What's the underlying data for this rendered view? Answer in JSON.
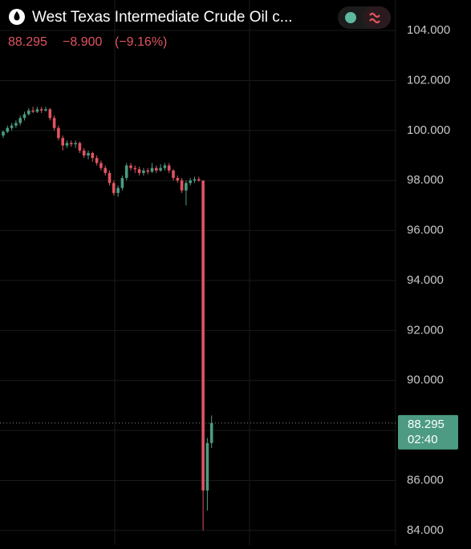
{
  "chart_data": {
    "type": "candlestick",
    "title": "West Texas Intermediate Crude Oil c...",
    "price": "88.295",
    "change": "−8.900",
    "change_pct": "(−9.16%)",
    "time_left": "02:40",
    "up_color": "#4c9b82",
    "down_color": "#e05560",
    "grid": true,
    "ylim": [
      83.42,
      105.22
    ],
    "yticks": [
      {
        "value": 84,
        "label": "84.000"
      },
      {
        "value": 86,
        "label": "86.000"
      },
      {
        "value": 88,
        "label": "88.000"
      },
      {
        "value": 90,
        "label": "90.000"
      },
      {
        "value": 92,
        "label": "92.000"
      },
      {
        "value": 94,
        "label": "94.000"
      },
      {
        "value": 96,
        "label": "96.000"
      },
      {
        "value": 98,
        "label": "98.000"
      },
      {
        "value": 100,
        "label": "100.000"
      },
      {
        "value": 102,
        "label": "102.000"
      },
      {
        "value": 104,
        "label": "104.000"
      }
    ],
    "series": {
      "open": [
        99.8,
        99.95,
        100.1,
        100.2,
        100.3,
        100.5,
        100.65,
        100.8,
        100.75,
        100.85,
        100.8,
        100.85,
        100.5,
        100.1,
        99.7,
        99.4,
        99.5,
        99.45,
        99.5,
        99.2,
        99.0,
        99.1,
        98.9,
        98.7,
        98.5,
        98.3,
        97.9,
        97.5,
        97.7,
        98.1,
        98.6,
        98.5,
        98.45,
        98.3,
        98.4,
        98.35,
        98.5,
        98.4,
        98.5,
        98.6,
        98.4,
        98.1,
        98.0,
        97.6,
        97.9,
        98.0,
        98.05,
        98.0,
        85.6,
        87.5
      ],
      "high": [
        100.0,
        100.2,
        100.3,
        100.4,
        100.6,
        100.75,
        100.9,
        100.95,
        100.95,
        100.95,
        100.95,
        100.9,
        100.6,
        100.2,
        99.8,
        99.6,
        99.6,
        99.6,
        99.55,
        99.3,
        99.2,
        99.15,
        99.0,
        98.8,
        98.6,
        98.4,
        98.0,
        97.8,
        98.2,
        98.7,
        98.7,
        98.6,
        98.55,
        98.5,
        98.5,
        98.7,
        98.6,
        98.65,
        98.7,
        98.7,
        98.45,
        98.2,
        98.1,
        98.0,
        98.1,
        98.15,
        98.15,
        98.0,
        87.7,
        88.6
      ],
      "low": [
        99.7,
        99.9,
        100.0,
        100.1,
        100.2,
        100.4,
        100.6,
        100.7,
        100.7,
        100.7,
        100.75,
        100.4,
        100.0,
        99.6,
        99.2,
        99.3,
        99.35,
        99.3,
        99.1,
        98.9,
        98.85,
        98.75,
        98.6,
        98.4,
        98.2,
        97.8,
        97.4,
        97.35,
        97.6,
        98.0,
        98.4,
        98.3,
        98.2,
        98.2,
        98.25,
        98.3,
        98.3,
        98.35,
        98.4,
        98.3,
        98.0,
        97.9,
        97.5,
        97.0,
        97.8,
        97.9,
        97.95,
        84.0,
        84.8,
        87.3
      ],
      "close": [
        99.95,
        100.1,
        100.2,
        100.3,
        100.5,
        100.65,
        100.8,
        100.75,
        100.85,
        100.8,
        100.85,
        100.5,
        100.1,
        99.7,
        99.4,
        99.5,
        99.45,
        99.5,
        99.2,
        99.0,
        99.1,
        98.9,
        98.7,
        98.5,
        98.3,
        97.9,
        97.5,
        97.7,
        98.1,
        98.6,
        98.5,
        98.45,
        98.3,
        98.4,
        98.35,
        98.5,
        98.4,
        98.5,
        98.6,
        98.4,
        98.1,
        98.0,
        97.6,
        97.9,
        98.0,
        98.05,
        98.0,
        85.6,
        87.5,
        88.295
      ]
    }
  }
}
